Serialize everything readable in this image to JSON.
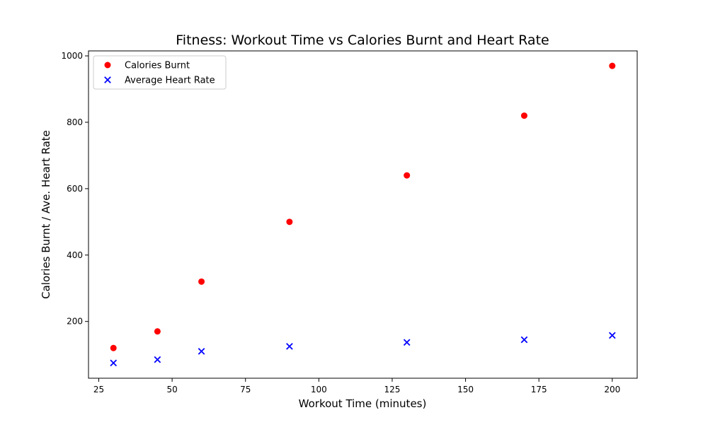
{
  "chart_data": {
    "type": "scatter",
    "title": "Fitness: Workout Time vs Calories Burnt and Heart Rate",
    "xlabel": "Workout Time (minutes)",
    "ylabel": "Calories Burnt / Ave. Heart Rate",
    "xlim": [
      21.5,
      208.5
    ],
    "ylim": [
      29,
      1015
    ],
    "xticks": [
      25,
      50,
      75,
      100,
      125,
      150,
      175,
      200
    ],
    "yticks": [
      200,
      400,
      600,
      800,
      1000
    ],
    "grid": false,
    "legend_position": "top-left",
    "x": [
      30,
      45,
      60,
      90,
      130,
      170,
      200
    ],
    "series": [
      {
        "name": "Calories Burnt",
        "marker": "circle",
        "color": "#ff0000",
        "values": [
          120,
          170,
          320,
          500,
          640,
          820,
          970
        ]
      },
      {
        "name": "Average Heart Rate",
        "marker": "x",
        "color": "#0000ff",
        "values": [
          75,
          85,
          110,
          125,
          137,
          145,
          158
        ]
      }
    ]
  }
}
